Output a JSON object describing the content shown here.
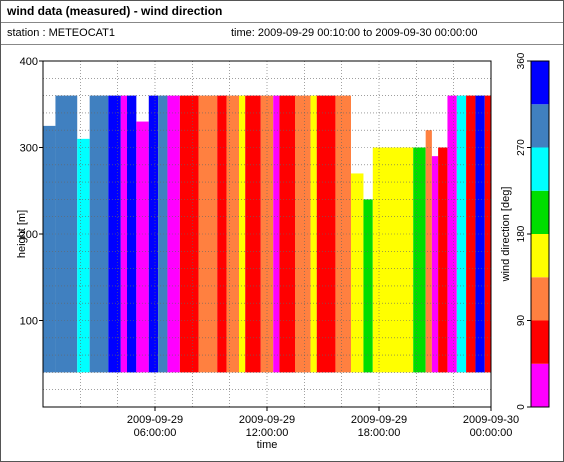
{
  "header": {
    "title": "wind data (measured) - wind direction",
    "station": "station : METEOCAT1",
    "time_range": "time: 2009-09-29 00:10:00 to 2009-09-30 00:00:00"
  },
  "chart_data": {
    "type": "heatmap",
    "xlabel": "time",
    "ylabel": "height [m]",
    "x_range": [
      "2009-09-29 00:00:00",
      "2009-09-30 00:00:00"
    ],
    "ylim": [
      0,
      400
    ],
    "x_ticks": [
      {
        "time": "2009-09-29 06:00:00",
        "line1": "2009-09-29",
        "line2": "06:00:00"
      },
      {
        "time": "2009-09-29 12:00:00",
        "line1": "2009-09-29",
        "line2": "12:00:00"
      },
      {
        "time": "2009-09-29 18:00:00",
        "line1": "2009-09-29",
        "line2": "18:00:00"
      },
      {
        "time": "2009-09-30 00:00:00",
        "line1": "2009-09-30",
        "line2": "00:00:00"
      }
    ],
    "y_ticks": [
      100,
      200,
      300,
      400
    ],
    "grid": true,
    "colorbar": {
      "label": "wind direction [deg]",
      "min": 0,
      "max": 360,
      "ticks": [
        0,
        90,
        180,
        270,
        360
      ],
      "bins": [
        {
          "from": 0,
          "to": 45,
          "color": "#ff00ff"
        },
        {
          "from": 45,
          "to": 90,
          "color": "#ff0000"
        },
        {
          "from": 90,
          "to": 135,
          "color": "#ff8040"
        },
        {
          "from": 135,
          "to": 180,
          "color": "#ffff00"
        },
        {
          "from": 180,
          "to": 225,
          "color": "#00dd00"
        },
        {
          "from": 225,
          "to": 270,
          "color": "#00ffff"
        },
        {
          "from": 270,
          "to": 315,
          "color": "#4080c0"
        },
        {
          "from": 315,
          "to": 360,
          "color": "#0000ff"
        }
      ]
    },
    "segments": [
      {
        "start": "00:00",
        "end": "00:40",
        "height_top": 325,
        "direction": 290
      },
      {
        "start": "00:40",
        "end": "01:50",
        "height_top": 360,
        "direction": 292
      },
      {
        "start": "01:50",
        "end": "02:30",
        "height_top": 310,
        "direction": 250
      },
      {
        "start": "02:30",
        "end": "03:30",
        "height_top": 360,
        "direction": 290
      },
      {
        "start": "03:30",
        "end": "04:10",
        "height_top": 360,
        "direction": 330
      },
      {
        "start": "04:10",
        "end": "04:30",
        "height_top": 360,
        "direction": 20
      },
      {
        "start": "04:30",
        "end": "05:00",
        "height_top": 360,
        "direction": 330
      },
      {
        "start": "05:00",
        "end": "05:40",
        "height_top": 330,
        "direction": 20
      },
      {
        "start": "05:40",
        "end": "06:10",
        "height_top": 360,
        "direction": 330
      },
      {
        "start": "06:10",
        "end": "06:40",
        "height_top": 360,
        "direction": 300
      },
      {
        "start": "06:40",
        "end": "07:20",
        "height_top": 360,
        "direction": 20
      },
      {
        "start": "07:20",
        "end": "08:20",
        "height_top": 360,
        "direction": 70
      },
      {
        "start": "08:20",
        "end": "09:20",
        "height_top": 360,
        "direction": 110
      },
      {
        "start": "09:20",
        "end": "09:50",
        "height_top": 360,
        "direction": 70
      },
      {
        "start": "09:50",
        "end": "10:30",
        "height_top": 360,
        "direction": 110
      },
      {
        "start": "10:30",
        "end": "10:50",
        "height_top": 360,
        "direction": 160
      },
      {
        "start": "10:50",
        "end": "11:40",
        "height_top": 360,
        "direction": 70
      },
      {
        "start": "11:40",
        "end": "12:20",
        "height_top": 360,
        "direction": 110
      },
      {
        "start": "12:20",
        "end": "12:40",
        "height_top": 360,
        "direction": 20
      },
      {
        "start": "12:40",
        "end": "13:30",
        "height_top": 360,
        "direction": 70
      },
      {
        "start": "13:30",
        "end": "14:20",
        "height_top": 360,
        "direction": 110
      },
      {
        "start": "14:20",
        "end": "14:40",
        "height_top": 360,
        "direction": 160
      },
      {
        "start": "14:40",
        "end": "15:40",
        "height_top": 360,
        "direction": 70
      },
      {
        "start": "15:40",
        "end": "16:30",
        "height_top": 360,
        "direction": 110
      },
      {
        "start": "16:30",
        "end": "17:10",
        "height_top": 270,
        "direction": 160
      },
      {
        "start": "17:10",
        "end": "17:40",
        "height_top": 240,
        "direction": 200
      },
      {
        "start": "17:40",
        "end": "19:50",
        "height_top": 300,
        "direction": 160
      },
      {
        "start": "19:50",
        "end": "20:30",
        "height_top": 300,
        "direction": 200
      },
      {
        "start": "20:30",
        "end": "20:50",
        "height_top": 320,
        "direction": 110
      },
      {
        "start": "20:50",
        "end": "21:10",
        "height_top": 290,
        "direction": 20
      },
      {
        "start": "21:10",
        "end": "21:40",
        "height_top": 300,
        "direction": 70
      },
      {
        "start": "21:40",
        "end": "22:10",
        "height_top": 360,
        "direction": 20
      },
      {
        "start": "22:10",
        "end": "22:40",
        "height_top": 360,
        "direction": 250
      },
      {
        "start": "22:40",
        "end": "23:10",
        "height_top": 360,
        "direction": 70
      },
      {
        "start": "23:10",
        "end": "23:40",
        "height_top": 360,
        "direction": 330
      },
      {
        "start": "23:40",
        "end": "24:00",
        "height_top": 360,
        "direction": 70
      }
    ]
  }
}
